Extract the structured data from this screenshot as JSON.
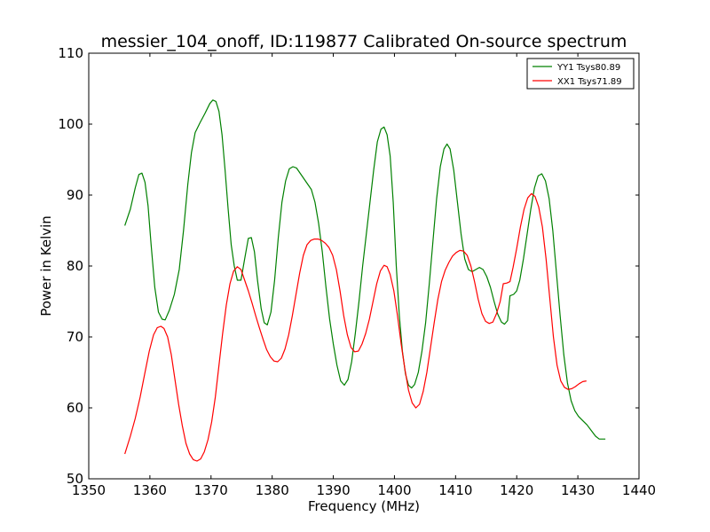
{
  "chart_data": {
    "type": "line",
    "title": "messier_104_onoff, ID:119877 Calibrated On-source spectrum",
    "xlabel": "Frequency (MHz)",
    "ylabel": "Power in Kelvin",
    "xlim": [
      1350,
      1440
    ],
    "ylim": [
      50,
      110
    ],
    "xticks": [
      1350,
      1360,
      1370,
      1380,
      1390,
      1400,
      1410,
      1420,
      1430,
      1440
    ],
    "yticks": [
      50,
      60,
      70,
      80,
      90,
      100,
      110
    ],
    "legend_position": "top-right",
    "grid": false,
    "series": [
      {
        "name": "YY1 Tsys80.89",
        "color": "#008000",
        "points": [
          [
            1355.9,
            85.7
          ],
          [
            1356.8,
            88.0
          ],
          [
            1357.6,
            91.0
          ],
          [
            1358.2,
            92.9
          ],
          [
            1358.7,
            93.1
          ],
          [
            1359.2,
            91.8
          ],
          [
            1359.7,
            88.5
          ],
          [
            1360.2,
            83.0
          ],
          [
            1360.8,
            77.0
          ],
          [
            1361.4,
            73.5
          ],
          [
            1362.0,
            72.5
          ],
          [
            1362.5,
            72.4
          ],
          [
            1363.2,
            73.8
          ],
          [
            1364.0,
            76.0
          ],
          [
            1364.8,
            79.5
          ],
          [
            1365.5,
            85.0
          ],
          [
            1366.2,
            91.5
          ],
          [
            1366.8,
            96.0
          ],
          [
            1367.4,
            98.8
          ],
          [
            1368.2,
            100.2
          ],
          [
            1369.0,
            101.5
          ],
          [
            1369.8,
            102.9
          ],
          [
            1370.3,
            103.4
          ],
          [
            1370.8,
            103.2
          ],
          [
            1371.3,
            101.8
          ],
          [
            1371.8,
            98.5
          ],
          [
            1372.3,
            93.5
          ],
          [
            1372.8,
            88.0
          ],
          [
            1373.3,
            83.0
          ],
          [
            1373.8,
            80.0
          ],
          [
            1374.3,
            78.0
          ],
          [
            1374.9,
            78.0
          ],
          [
            1375.5,
            81.0
          ],
          [
            1376.1,
            83.9
          ],
          [
            1376.6,
            84.0
          ],
          [
            1377.1,
            82.0
          ],
          [
            1377.6,
            78.0
          ],
          [
            1378.2,
            74.0
          ],
          [
            1378.7,
            72.0
          ],
          [
            1379.2,
            71.7
          ],
          [
            1379.8,
            73.5
          ],
          [
            1380.4,
            78.0
          ],
          [
            1381.0,
            84.0
          ],
          [
            1381.6,
            89.0
          ],
          [
            1382.2,
            92.0
          ],
          [
            1382.8,
            93.7
          ],
          [
            1383.4,
            94.0
          ],
          [
            1384.0,
            93.8
          ],
          [
            1384.8,
            92.8
          ],
          [
            1385.6,
            91.8
          ],
          [
            1386.4,
            90.8
          ],
          [
            1387.0,
            89.0
          ],
          [
            1387.6,
            86.0
          ],
          [
            1388.2,
            82.0
          ],
          [
            1388.8,
            77.0
          ],
          [
            1389.4,
            72.5
          ],
          [
            1390.0,
            69.0
          ],
          [
            1390.6,
            66.0
          ],
          [
            1391.2,
            63.8
          ],
          [
            1391.8,
            63.2
          ],
          [
            1392.4,
            64.0
          ],
          [
            1393.0,
            66.5
          ],
          [
            1393.6,
            70.5
          ],
          [
            1394.2,
            75.0
          ],
          [
            1394.8,
            80.0
          ],
          [
            1395.4,
            84.5
          ],
          [
            1396.0,
            89.0
          ],
          [
            1396.6,
            93.5
          ],
          [
            1397.2,
            97.5
          ],
          [
            1397.8,
            99.3
          ],
          [
            1398.3,
            99.6
          ],
          [
            1398.8,
            98.5
          ],
          [
            1399.3,
            95.5
          ],
          [
            1399.8,
            89.0
          ],
          [
            1400.3,
            80.0
          ],
          [
            1400.8,
            73.0
          ],
          [
            1401.3,
            68.0
          ],
          [
            1401.8,
            64.8
          ],
          [
            1402.3,
            63.2
          ],
          [
            1402.8,
            62.8
          ],
          [
            1403.3,
            63.3
          ],
          [
            1403.9,
            65.0
          ],
          [
            1404.5,
            68.0
          ],
          [
            1405.1,
            72.0
          ],
          [
            1405.7,
            77.5
          ],
          [
            1406.3,
            83.5
          ],
          [
            1406.9,
            89.5
          ],
          [
            1407.5,
            94.0
          ],
          [
            1408.1,
            96.5
          ],
          [
            1408.6,
            97.2
          ],
          [
            1409.1,
            96.5
          ],
          [
            1409.7,
            93.5
          ],
          [
            1410.3,
            89.0
          ],
          [
            1410.9,
            84.5
          ],
          [
            1411.5,
            81.0
          ],
          [
            1412.1,
            79.5
          ],
          [
            1412.7,
            79.2
          ],
          [
            1413.3,
            79.5
          ],
          [
            1413.9,
            79.8
          ],
          [
            1414.5,
            79.5
          ],
          [
            1415.1,
            78.5
          ],
          [
            1415.7,
            77.0
          ],
          [
            1416.3,
            75.0
          ],
          [
            1416.9,
            73.2
          ],
          [
            1417.5,
            72.1
          ],
          [
            1418.0,
            71.8
          ],
          [
            1418.5,
            72.3
          ],
          [
            1418.9,
            75.8
          ],
          [
            1419.5,
            76.0
          ],
          [
            1420.0,
            76.5
          ],
          [
            1420.5,
            78.0
          ],
          [
            1421.1,
            81.0
          ],
          [
            1421.7,
            84.5
          ],
          [
            1422.3,
            88.0
          ],
          [
            1422.9,
            91.0
          ],
          [
            1423.5,
            92.7
          ],
          [
            1424.1,
            93.0
          ],
          [
            1424.7,
            92.0
          ],
          [
            1425.3,
            89.5
          ],
          [
            1425.9,
            85.0
          ],
          [
            1426.5,
            79.0
          ],
          [
            1427.1,
            73.0
          ],
          [
            1427.7,
            67.5
          ],
          [
            1428.3,
            63.5
          ],
          [
            1428.9,
            61.0
          ],
          [
            1429.5,
            59.6
          ],
          [
            1430.1,
            58.8
          ],
          [
            1430.8,
            58.2
          ],
          [
            1431.5,
            57.6
          ],
          [
            1432.2,
            56.8
          ],
          [
            1432.9,
            56.0
          ],
          [
            1433.5,
            55.6
          ],
          [
            1434.0,
            55.6
          ],
          [
            1434.5,
            55.6
          ]
        ]
      },
      {
        "name": "XX1 Tsys71.89",
        "color": "#ff0000",
        "points": [
          [
            1355.9,
            53.5
          ],
          [
            1356.8,
            56.0
          ],
          [
            1357.6,
            58.5
          ],
          [
            1358.4,
            61.5
          ],
          [
            1359.2,
            65.0
          ],
          [
            1359.9,
            68.0
          ],
          [
            1360.6,
            70.3
          ],
          [
            1361.2,
            71.3
          ],
          [
            1361.8,
            71.5
          ],
          [
            1362.3,
            71.2
          ],
          [
            1362.9,
            70.0
          ],
          [
            1363.5,
            67.5
          ],
          [
            1364.1,
            64.0
          ],
          [
            1364.7,
            60.5
          ],
          [
            1365.3,
            57.5
          ],
          [
            1365.9,
            55.0
          ],
          [
            1366.5,
            53.5
          ],
          [
            1367.1,
            52.7
          ],
          [
            1367.7,
            52.5
          ],
          [
            1368.3,
            52.8
          ],
          [
            1368.9,
            53.8
          ],
          [
            1369.5,
            55.5
          ],
          [
            1370.1,
            58.0
          ],
          [
            1370.7,
            61.5
          ],
          [
            1371.3,
            66.0
          ],
          [
            1371.9,
            70.5
          ],
          [
            1372.5,
            74.5
          ],
          [
            1373.1,
            77.5
          ],
          [
            1373.7,
            79.3
          ],
          [
            1374.3,
            79.9
          ],
          [
            1374.9,
            79.5
          ],
          [
            1375.5,
            78.0
          ],
          [
            1376.1,
            76.5
          ],
          [
            1376.7,
            74.8
          ],
          [
            1377.3,
            73.0
          ],
          [
            1377.9,
            71.3
          ],
          [
            1378.5,
            69.7
          ],
          [
            1379.1,
            68.2
          ],
          [
            1379.7,
            67.2
          ],
          [
            1380.3,
            66.6
          ],
          [
            1380.9,
            66.5
          ],
          [
            1381.5,
            67.0
          ],
          [
            1382.1,
            68.3
          ],
          [
            1382.7,
            70.3
          ],
          [
            1383.3,
            73.0
          ],
          [
            1383.9,
            76.0
          ],
          [
            1384.5,
            79.0
          ],
          [
            1385.1,
            81.5
          ],
          [
            1385.7,
            83.0
          ],
          [
            1386.3,
            83.6
          ],
          [
            1386.9,
            83.8
          ],
          [
            1387.5,
            83.8
          ],
          [
            1388.1,
            83.6
          ],
          [
            1388.7,
            83.2
          ],
          [
            1389.3,
            82.6
          ],
          [
            1389.9,
            81.5
          ],
          [
            1390.5,
            79.5
          ],
          [
            1391.1,
            76.5
          ],
          [
            1391.7,
            73.0
          ],
          [
            1392.3,
            70.3
          ],
          [
            1392.9,
            68.5
          ],
          [
            1393.5,
            67.9
          ],
          [
            1394.1,
            68.0
          ],
          [
            1394.7,
            69.0
          ],
          [
            1395.3,
            70.5
          ],
          [
            1395.9,
            72.5
          ],
          [
            1396.5,
            75.0
          ],
          [
            1397.1,
            77.5
          ],
          [
            1397.7,
            79.3
          ],
          [
            1398.3,
            80.1
          ],
          [
            1398.8,
            79.9
          ],
          [
            1399.3,
            78.8
          ],
          [
            1399.9,
            76.5
          ],
          [
            1400.5,
            73.0
          ],
          [
            1401.1,
            69.0
          ],
          [
            1401.7,
            65.5
          ],
          [
            1402.3,
            62.5
          ],
          [
            1402.9,
            60.7
          ],
          [
            1403.5,
            60.0
          ],
          [
            1404.1,
            60.5
          ],
          [
            1404.7,
            62.3
          ],
          [
            1405.3,
            65.0
          ],
          [
            1405.9,
            68.5
          ],
          [
            1406.5,
            72.0
          ],
          [
            1407.1,
            75.3
          ],
          [
            1407.7,
            77.8
          ],
          [
            1408.3,
            79.4
          ],
          [
            1408.9,
            80.5
          ],
          [
            1409.5,
            81.4
          ],
          [
            1410.1,
            81.9
          ],
          [
            1410.7,
            82.2
          ],
          [
            1411.3,
            82.1
          ],
          [
            1411.9,
            81.5
          ],
          [
            1412.5,
            80.0
          ],
          [
            1413.1,
            77.8
          ],
          [
            1413.7,
            75.3
          ],
          [
            1414.3,
            73.3
          ],
          [
            1414.9,
            72.2
          ],
          [
            1415.5,
            71.9
          ],
          [
            1416.1,
            72.1
          ],
          [
            1416.7,
            73.3
          ],
          [
            1417.3,
            75.0
          ],
          [
            1417.8,
            77.5
          ],
          [
            1418.4,
            77.6
          ],
          [
            1418.9,
            77.8
          ],
          [
            1419.4,
            79.8
          ],
          [
            1420.0,
            82.5
          ],
          [
            1420.6,
            85.5
          ],
          [
            1421.2,
            88.0
          ],
          [
            1421.8,
            89.6
          ],
          [
            1422.4,
            90.2
          ],
          [
            1423.0,
            89.8
          ],
          [
            1423.6,
            88.3
          ],
          [
            1424.2,
            85.5
          ],
          [
            1424.8,
            81.0
          ],
          [
            1425.4,
            75.5
          ],
          [
            1426.0,
            70.0
          ],
          [
            1426.6,
            66.0
          ],
          [
            1427.2,
            63.8
          ],
          [
            1427.8,
            62.9
          ],
          [
            1428.4,
            62.6
          ],
          [
            1429.0,
            62.7
          ],
          [
            1429.6,
            63.0
          ],
          [
            1430.2,
            63.4
          ],
          [
            1430.8,
            63.7
          ],
          [
            1431.4,
            63.8
          ]
        ]
      }
    ]
  }
}
